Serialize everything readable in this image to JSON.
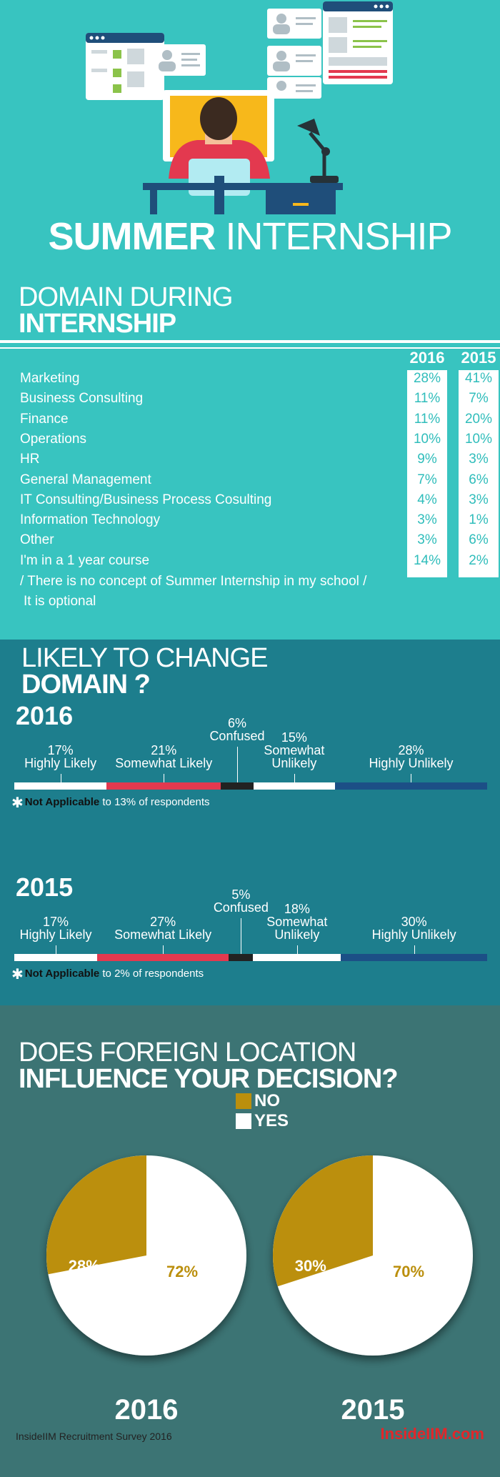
{
  "hero": {
    "title_bold": "SUMMER",
    "title_rest": " INTERNSHIP",
    "illustration_icon": "person-at-desk-icon"
  },
  "domain": {
    "heading_line1": "DOMAIN DURING",
    "heading_line2": "INTERNSHIP",
    "columns": [
      "2016",
      "2015"
    ],
    "rows": [
      {
        "label": "Marketing",
        "v2016": "28%",
        "v2015": "41%"
      },
      {
        "label": "Business Consulting",
        "v2016": "11%",
        "v2015": "7%"
      },
      {
        "label": "Finance",
        "v2016": "11%",
        "v2015": "20%"
      },
      {
        "label": "Operations",
        "v2016": "10%",
        "v2015": "10%"
      },
      {
        "label": "HR",
        "v2016": "9%",
        "v2015": "3%"
      },
      {
        "label": "General Management",
        "v2016": "7%",
        "v2015": "6%"
      },
      {
        "label": "IT Consulting/Business Process Cosulting",
        "v2016": "4%",
        "v2015": "3%"
      },
      {
        "label": "Information Technology",
        "v2016": "3%",
        "v2015": "1%"
      },
      {
        "label": "Other",
        "v2016": "3%",
        "v2015": "6%"
      },
      {
        "label": "I'm in a 1 year course",
        "v2016": "14%",
        "v2015": "2%"
      }
    ],
    "extra_lines": [
      "/ There is no concept of Summer Internship in my school /",
      "It is optional"
    ]
  },
  "likely": {
    "heading_line1": "LIKELY TO CHANGE",
    "heading_line2": "DOMAIN ?",
    "years": [
      {
        "year": "2016",
        "segments": [
          {
            "pct": "17%",
            "label": "Highly Likely",
            "value": 17,
            "color": "#ffffff"
          },
          {
            "pct": "21%",
            "label": "Somewhat Likely",
            "value": 21,
            "color": "#e3394f"
          },
          {
            "pct": "6%",
            "label": "Confused",
            "value": 6,
            "color": "#222222"
          },
          {
            "pct": "15%",
            "label": "Somewhat Unlikely",
            "value": 15,
            "color": "#ffffff"
          },
          {
            "pct": "28%",
            "label": "Highly Unlikely",
            "value": 28,
            "color": "#1c4f86"
          }
        ],
        "note_bold": "Not Applicable",
        "note_rest": " to 13% of respondents"
      },
      {
        "year": "2015",
        "segments": [
          {
            "pct": "17%",
            "label": "Highly Likely",
            "value": 17,
            "color": "#ffffff"
          },
          {
            "pct": "27%",
            "label": "Somewhat Likely",
            "value": 27,
            "color": "#e3394f"
          },
          {
            "pct": "5%",
            "label": "Confused",
            "value": 5,
            "color": "#222222"
          },
          {
            "pct": "18%",
            "label": "Somewhat Unlikely",
            "value": 18,
            "color": "#ffffff"
          },
          {
            "pct": "30%",
            "label": "Highly Unlikely",
            "value": 30,
            "color": "#1c4f86"
          }
        ],
        "note_bold": "Not Applicable",
        "note_rest": " to 2% of respondents"
      }
    ]
  },
  "foreign": {
    "heading_line1": "DOES FOREIGN LOCATION",
    "heading_line2": "INFLUENCE YOUR DECISION?",
    "legend": [
      {
        "label": "NO",
        "color": "#bb8f0d"
      },
      {
        "label": "YES",
        "color": "#ffffff"
      }
    ]
  },
  "chart_data": [
    {
      "type": "table",
      "title": "DOMAIN DURING INTERNSHIP",
      "columns": [
        "2016",
        "2015"
      ],
      "categories": [
        "Marketing",
        "Business Consulting",
        "Finance",
        "Operations",
        "HR",
        "General Management",
        "IT Consulting/Business Process Cosulting",
        "Information Technology",
        "Other",
        "I'm in a 1 year course / There is no concept of Summer Internship in my school / It is optional"
      ],
      "series": [
        {
          "name": "2016",
          "values": [
            28,
            11,
            11,
            10,
            9,
            7,
            4,
            3,
            3,
            14
          ]
        },
        {
          "name": "2015",
          "values": [
            41,
            7,
            20,
            10,
            3,
            6,
            3,
            1,
            6,
            2
          ]
        }
      ]
    },
    {
      "type": "bar",
      "title": "LIKELY TO CHANGE DOMAIN ?",
      "categories": [
        "Highly Likely",
        "Somewhat Likely",
        "Confused",
        "Somewhat Unlikely",
        "Highly Unlikely"
      ],
      "series": [
        {
          "name": "2016",
          "values": [
            17,
            21,
            6,
            15,
            28
          ]
        },
        {
          "name": "2015",
          "values": [
            17,
            27,
            5,
            18,
            30
          ]
        }
      ]
    },
    {
      "type": "pie",
      "title": "DOES FOREIGN LOCATION INFLUENCE YOUR DECISION?",
      "pies": [
        {
          "year": "2016",
          "slices": [
            {
              "label": "NO",
              "value": 28,
              "text": "28%"
            },
            {
              "label": "YES",
              "value": 72,
              "text": "72%"
            }
          ]
        },
        {
          "year": "2015",
          "slices": [
            {
              "label": "NO",
              "value": 30,
              "text": "30%"
            },
            {
              "label": "YES",
              "value": 70,
              "text": "70%"
            }
          ]
        }
      ]
    }
  ],
  "footer": {
    "left": "InsideIIM Recruitment Survey 2016",
    "right": "InsideIIM.com"
  }
}
